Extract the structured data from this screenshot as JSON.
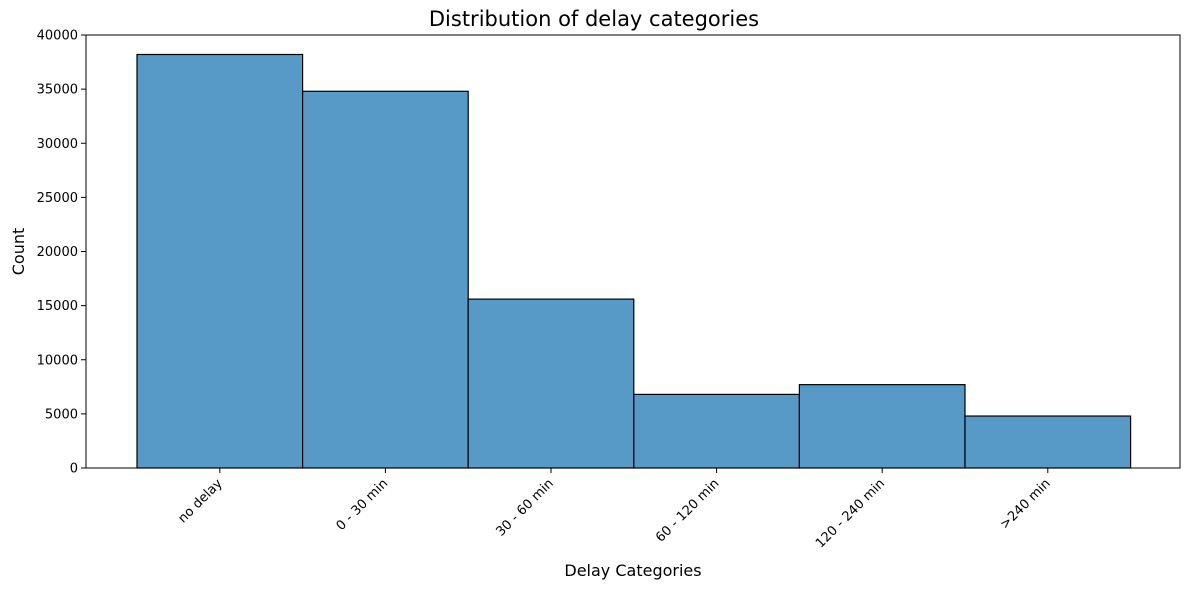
{
  "chart_data": {
    "type": "bar",
    "title": "Distribution of delay categories",
    "xlabel": "Delay Categories",
    "ylabel": "Count",
    "categories": [
      "no delay",
      "0 - 30 min",
      "30 - 60 min",
      "60 - 120 min",
      "120 - 240 min",
      ">240 min"
    ],
    "values": [
      38200,
      34800,
      15600,
      6800,
      7700,
      4800
    ],
    "ylim": [
      0,
      40000
    ],
    "yticks": [
      0,
      5000,
      10000,
      15000,
      20000,
      25000,
      30000,
      35000,
      40000
    ],
    "bar_color": "#5799c7",
    "edge_color": "#000000",
    "grid": false,
    "legend": "none"
  }
}
